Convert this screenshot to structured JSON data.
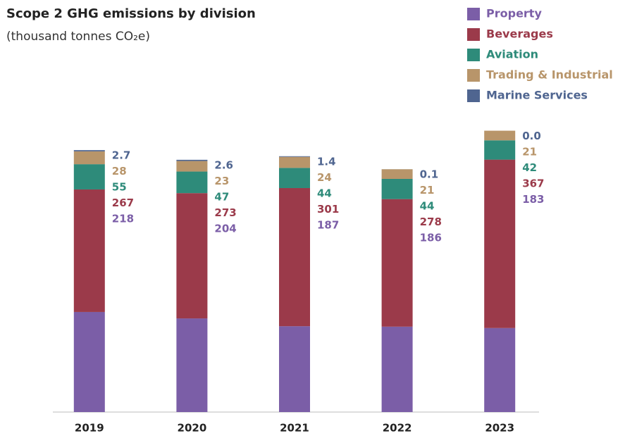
{
  "chart_data": {
    "type": "stacked_bar",
    "title": "Scope 2 GHG emissions by division",
    "subtitle": "(thousand tonnes CO₂e)",
    "categories": [
      "2019",
      "2020",
      "2021",
      "2022",
      "2023"
    ],
    "series": [
      {
        "name": "Property",
        "color": "#7b5ea7",
        "values": [
          218,
          204,
          187,
          186,
          183
        ]
      },
      {
        "name": "Beverages",
        "color": "#9b3a4a",
        "values": [
          267,
          273,
          301,
          278,
          367
        ]
      },
      {
        "name": "Aviation",
        "color": "#2e8b7a",
        "values": [
          55,
          47,
          44,
          44,
          42
        ]
      },
      {
        "name": "Trading & Industrial",
        "color": "#b8956a",
        "values": [
          28,
          23,
          24,
          21,
          21
        ]
      },
      {
        "name": "Marine Services",
        "color": "#4f6590",
        "values": [
          2.7,
          2.6,
          1.4,
          0.1,
          0
        ],
        "value_labels": [
          "2.7",
          "2.6",
          "1.4",
          "0.1",
          "0.0"
        ]
      }
    ],
    "ylim": [
      0,
      620
    ],
    "legend": "top-right"
  }
}
